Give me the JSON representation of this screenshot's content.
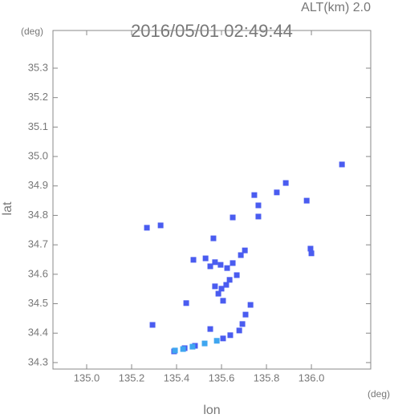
{
  "chart_data": {
    "type": "scatter",
    "title": "2016/05/01 02:49:44",
    "subtitle": "ALT(km) 2.0",
    "x_label": "lon",
    "y_label": "lat",
    "x_unit": "(deg)",
    "y_unit": "(deg)",
    "xlim": [
      134.85,
      136.264
    ],
    "ylim": [
      34.278,
      35.428
    ],
    "xticks": [
      {
        "value": 135,
        "label": "135.0"
      },
      135.2,
      135.4,
      135.6,
      135.8,
      {
        "value": 136,
        "label": "136.0"
      }
    ],
    "yticks": [
      34.3,
      34.4,
      34.5,
      34.6,
      34.7,
      34.8,
      34.9,
      {
        "value": 35,
        "label": "35.0"
      },
      35.1,
      35.2,
      35.3
    ],
    "series": [
      {
        "color": "#4a5cf0",
        "x": [
          135.268,
          135.329,
          135.475,
          135.529,
          135.571,
          135.55,
          135.596,
          135.625,
          135.686,
          135.704,
          135.65,
          135.571,
          135.6,
          135.621,
          135.586,
          135.607,
          135.636,
          135.668,
          135.443,
          135.729,
          135.707,
          135.693,
          135.679,
          135.639,
          135.607,
          135.55,
          135.293,
          135.482,
          135.436,
          135.389,
          135.846,
          135.886,
          135.979,
          135.764,
          135.764,
          135.746,
          136.0,
          135.996,
          135.65,
          135.564,
          136.136
        ],
        "values": [
          34.758,
          34.766,
          34.649,
          34.654,
          34.641,
          34.627,
          34.632,
          34.621,
          34.665,
          34.681,
          34.638,
          34.559,
          34.551,
          34.564,
          34.534,
          34.51,
          34.581,
          34.597,
          34.502,
          34.496,
          34.463,
          34.431,
          34.409,
          34.393,
          34.382,
          34.414,
          34.428,
          34.357,
          34.349,
          34.338,
          34.878,
          34.91,
          34.85,
          34.834,
          34.796,
          34.869,
          34.671,
          34.687,
          34.793,
          34.722,
          34.973
        ]
      },
      {
        "color": "#3fa6f0",
        "x": [
          135.579,
          135.525,
          135.471,
          135.429,
          135.393
        ],
        "values": [
          34.374,
          34.365,
          34.354,
          34.346,
          34.341
        ]
      }
    ]
  }
}
